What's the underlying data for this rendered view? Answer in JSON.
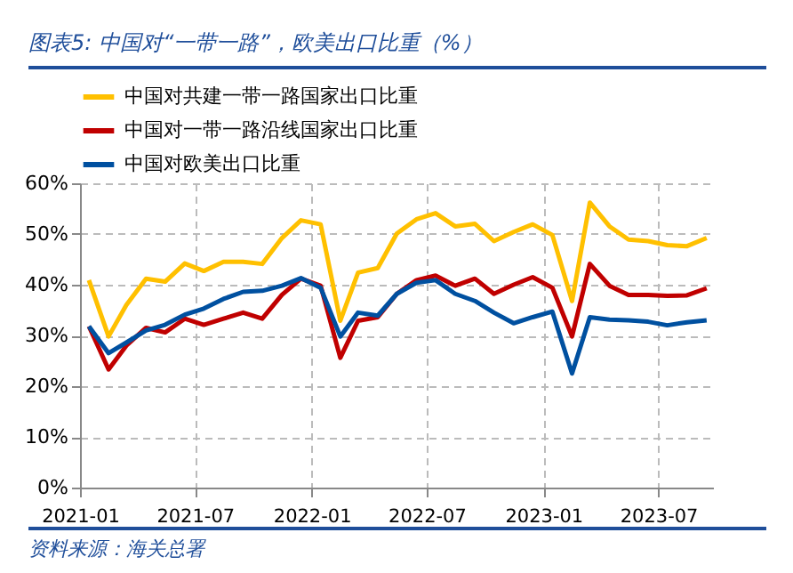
{
  "chart_data": {
    "type": "line",
    "title": "图表5: 中国对“一带一路”，欧美出口比重（%）",
    "annotations": [
      "资料来源：海关总署"
    ],
    "x": [
      "2021-01-15",
      "2021-02-15",
      "2021-03-15",
      "2021-04-15",
      "2021-05-15",
      "2021-06-15",
      "2021-07-15",
      "2021-08-15",
      "2021-09-15",
      "2021-10-15",
      "2021-11-15",
      "2021-12-15",
      "2022-01-15",
      "2022-02-15",
      "2022-03-15",
      "2022-04-15",
      "2022-05-15",
      "2022-06-15",
      "2022-07-15",
      "2022-08-15",
      "2022-09-15",
      "2022-10-15",
      "2022-11-15",
      "2022-12-15",
      "2023-01-15",
      "2023-02-15",
      "2023-03-15",
      "2023-04-15",
      "2023-05-15",
      "2023-06-15",
      "2023-07-15",
      "2023-08-15",
      "2023-09-15"
    ],
    "series": [
      {
        "name": "中国对共建一带一路国家出口比重",
        "color": "#ffc000",
        "values": [
          40.9,
          29.8,
          36,
          41.2,
          40.6,
          44.2,
          42.7,
          44.5,
          44.5,
          44.1,
          49.2,
          52.7,
          51.9,
          32.9,
          42.4,
          43.3,
          50.1,
          52.9,
          54.1,
          51.5,
          52,
          48.6,
          50.4,
          51.9,
          49.8,
          36.8,
          56.2,
          51.5,
          48.9,
          48.6,
          47.8,
          47.6,
          49.2
        ]
      },
      {
        "name": "中国对一带一路沿线国家出口比重",
        "color": "#c00000",
        "values": [
          31.8,
          23.3,
          28,
          31.5,
          30.6,
          33.3,
          32.1,
          33.3,
          34.5,
          33.3,
          38,
          41.2,
          39.8,
          25.6,
          32.9,
          33.6,
          38.2,
          40.9,
          41.8,
          39.8,
          41.2,
          38.2,
          40,
          41.5,
          39.4,
          29.8,
          44.1,
          39.8,
          38,
          38,
          37.8,
          37.9,
          39.3
        ]
      },
      {
        "name": "中国对欧美出口比重",
        "color": "#0050a0",
        "values": [
          31.8,
          26.5,
          28.6,
          31,
          32.1,
          34.1,
          35.3,
          37.2,
          38.6,
          38.8,
          39.8,
          41.3,
          39.4,
          29.8,
          34.5,
          33.9,
          38.2,
          40.4,
          40.9,
          38.2,
          36.8,
          34.5,
          32.4,
          33.6,
          34.7,
          22.5,
          33.6,
          33.1,
          33,
          32.7,
          32,
          32.6,
          33
        ]
      }
    ],
    "xlim": [
      "2021-01-01",
      "2023-09-25"
    ],
    "xticks": [
      "2021-01",
      "2021-07",
      "2022-01",
      "2022-07",
      "2023-01",
      "2023-07"
    ],
    "ylim": [
      0,
      60
    ],
    "yticks": [
      {
        "value": 0,
        "label": "0%"
      },
      {
        "value": 10,
        "label": "10%"
      },
      {
        "value": 20,
        "label": "20%"
      },
      {
        "value": 30,
        "label": "30%"
      },
      {
        "value": 40,
        "label": "40%"
      },
      {
        "value": 50,
        "label": "50%"
      },
      {
        "value": 60,
        "label": "60%"
      }
    ],
    "grid": true,
    "legend": "top"
  }
}
